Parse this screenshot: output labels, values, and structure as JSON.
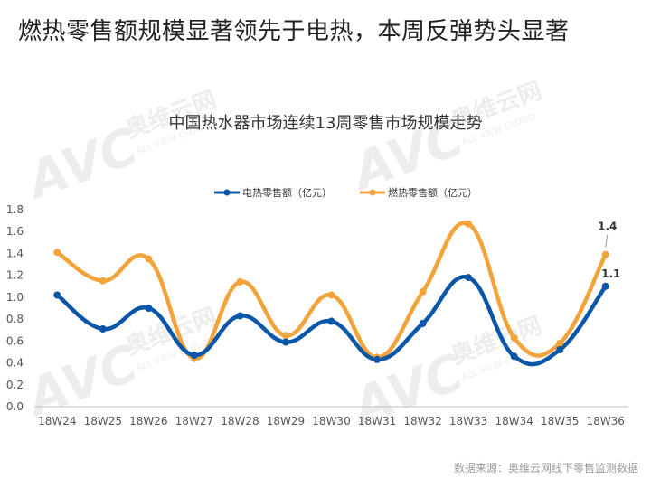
{
  "headline": "燃热零售额规模显著领先于电热，本周反弹势头显著",
  "source": "数据来源：奥维云网线下零售监测数据",
  "watermark": {
    "logo": "AVC",
    "brand_cn": "奥维云网",
    "brand_en": "ALL VIEW CLOUD"
  },
  "colors": {
    "electric": "#0a56a8",
    "gas": "#f2a33a",
    "axis": "#bfbfbf"
  },
  "chart_data": {
    "type": "line",
    "title": "中国热水器市场连续13周零售市场规模走势",
    "categories": [
      "18W24",
      "18W25",
      "18W26",
      "18W27",
      "18W28",
      "18W29",
      "18W30",
      "18W31",
      "18W32",
      "18W33",
      "18W34",
      "18W35",
      "18W36"
    ],
    "series": [
      {
        "name": "电热零售额（亿元）",
        "values": [
          1.02,
          0.71,
          0.9,
          0.47,
          0.83,
          0.59,
          0.78,
          0.43,
          0.76,
          1.18,
          0.46,
          0.52,
          1.1
        ]
      },
      {
        "name": "燃热零售额（亿元）",
        "values": [
          1.41,
          1.15,
          1.35,
          0.44,
          1.14,
          0.65,
          1.02,
          0.45,
          1.05,
          1.67,
          0.63,
          0.58,
          1.39
        ]
      }
    ],
    "data_labels": {
      "electric_last": "1.1",
      "gas_last": "1.4"
    },
    "yticks": [
      "0.0",
      "0.2",
      "0.4",
      "0.6",
      "0.8",
      "1.0",
      "1.2",
      "1.4",
      "1.6",
      "1.8"
    ],
    "ylim": [
      0,
      1.8
    ],
    "legend_position": "top",
    "grid": false
  }
}
